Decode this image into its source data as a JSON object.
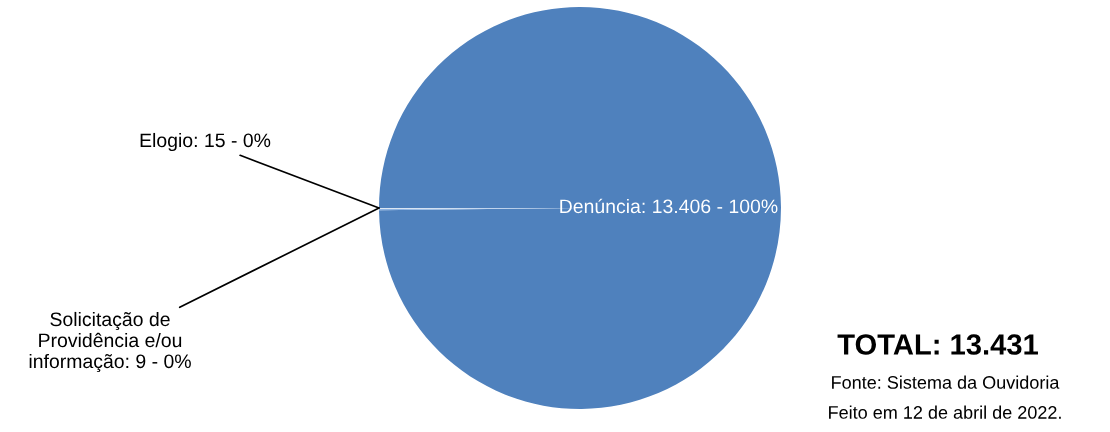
{
  "chart_data": {
    "type": "pie",
    "categories": [
      "Denúncia",
      "Elogio",
      "Solicitação de Providência e/ou informação"
    ],
    "values": [
      13406,
      15,
      9
    ],
    "colors": [
      "#4f81bd",
      "#8eb4e3",
      "#dbe5f1"
    ],
    "value_labels": [
      "13.406 - 100%",
      "15 - 0%",
      "9 - 0%"
    ],
    "annotations": [
      "TOTAL: 13.431",
      "Fonte: Sistema da Ouvidoria",
      "Feito em 12 de abril de 2022."
    ]
  }
}
